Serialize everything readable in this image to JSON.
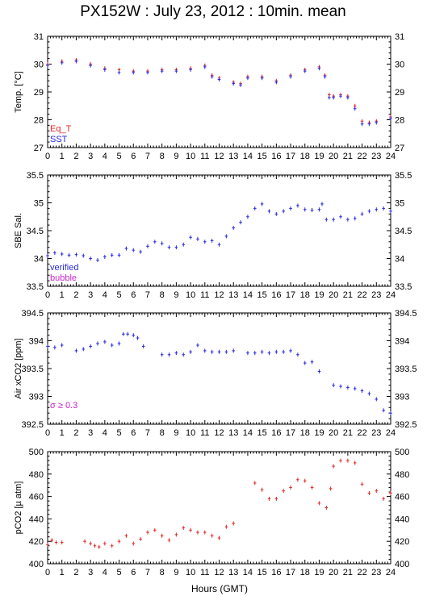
{
  "title": "PX152W : July 23, 2012 : 10min. mean",
  "xlabel": "Hours (GMT)",
  "colors": {
    "blue": "#2a2ae0",
    "red": "#e02a2a",
    "magenta": "#cc22cc",
    "frame": "#000000"
  },
  "chart_data": [
    {
      "type": "scatter",
      "ylabel": "Temp. [°C]",
      "xlim": [
        0,
        24
      ],
      "ylim": [
        27,
        31
      ],
      "xticks": [
        "0",
        "1",
        "2",
        "3",
        "4",
        "5",
        "6",
        "7",
        "8",
        "9",
        "10",
        "11",
        "12",
        "13",
        "14",
        "15",
        "16",
        "17",
        "18",
        "19",
        "20",
        "21",
        "22",
        "23",
        "24"
      ],
      "yticks": [
        "27",
        "28",
        "29",
        "30",
        "31"
      ],
      "legend": [
        {
          "label": "Eq_T",
          "color": "#e02a2a"
        },
        {
          "label": "SST",
          "color": "#2a2ae0"
        }
      ],
      "legend_position": "bottom-left",
      "series": [
        {
          "name": "Eq_T",
          "color": "#e02a2a",
          "x": [
            0,
            1,
            2,
            3,
            4,
            5,
            6,
            7,
            8,
            9,
            10,
            11,
            11.5,
            12,
            13,
            13.5,
            14,
            15,
            16,
            17,
            18,
            19,
            19.4,
            19.7,
            20,
            20.5,
            21,
            21.5,
            22,
            22.5,
            23,
            24
          ],
          "y": [
            30.0,
            30.1,
            30.15,
            30.0,
            29.85,
            29.8,
            29.75,
            29.75,
            29.8,
            29.8,
            29.85,
            29.95,
            29.6,
            29.5,
            29.35,
            29.3,
            29.55,
            29.55,
            29.4,
            29.6,
            29.8,
            29.9,
            29.6,
            28.9,
            28.85,
            28.9,
            28.85,
            28.5,
            27.95,
            27.9,
            27.95,
            28.1
          ]
        },
        {
          "name": "SST",
          "color": "#2a2ae0",
          "x": [
            0,
            1,
            2,
            3,
            4,
            5,
            6,
            7,
            8,
            9,
            10,
            11,
            11.5,
            12,
            13,
            13.5,
            14,
            15,
            16,
            17,
            18,
            19,
            19.4,
            19.7,
            20,
            20.5,
            21,
            21.5,
            22,
            22.5,
            23,
            24
          ],
          "y": [
            29.95,
            30.05,
            30.1,
            29.95,
            29.8,
            29.7,
            29.7,
            29.7,
            29.75,
            29.75,
            29.8,
            29.9,
            29.55,
            29.45,
            29.3,
            29.25,
            29.5,
            29.5,
            29.35,
            29.55,
            29.75,
            29.85,
            29.55,
            28.8,
            28.8,
            28.85,
            28.8,
            28.4,
            27.85,
            27.85,
            27.9,
            28.05
          ]
        }
      ]
    },
    {
      "type": "scatter",
      "ylabel": "SBE Sal.",
      "xlim": [
        0,
        24
      ],
      "ylim": [
        33.5,
        35.5
      ],
      "xticks": [
        "0",
        "1",
        "2",
        "3",
        "4",
        "5",
        "6",
        "7",
        "8",
        "9",
        "10",
        "11",
        "12",
        "13",
        "14",
        "15",
        "16",
        "17",
        "18",
        "19",
        "20",
        "21",
        "22",
        "23",
        "24"
      ],
      "yticks": [
        "33.5",
        "34",
        "34.5",
        "35",
        "35.5"
      ],
      "legend": [
        {
          "label": "verified",
          "color": "#2a2ae0"
        },
        {
          "label": "bubble",
          "color": "#cc22cc"
        }
      ],
      "legend_position": "bottom-left",
      "series": [
        {
          "name": "verified",
          "color": "#2a2ae0",
          "x": [
            0,
            0.5,
            1,
            1.5,
            2,
            2.5,
            3,
            3.5,
            4,
            4.5,
            5,
            5.5,
            6,
            6.5,
            7,
            7.5,
            8,
            8.5,
            9,
            9.5,
            10,
            10.5,
            11,
            11.5,
            12,
            12.5,
            13,
            13.5,
            14,
            14.5,
            15,
            15.5,
            16,
            16.5,
            17,
            17.5,
            18,
            18.5,
            19,
            19.2,
            19.5,
            20,
            20.5,
            21,
            21.5,
            22,
            22.5,
            23,
            23.5,
            24
          ],
          "y": [
            34.05,
            34.1,
            34.08,
            34.06,
            34.07,
            34.05,
            34.0,
            33.97,
            34.03,
            34.06,
            34.06,
            34.18,
            34.15,
            34.12,
            34.22,
            34.3,
            34.27,
            34.2,
            34.2,
            34.25,
            34.38,
            34.35,
            34.3,
            34.32,
            34.25,
            34.4,
            34.55,
            34.65,
            34.75,
            34.9,
            34.98,
            34.85,
            34.8,
            34.85,
            34.9,
            34.95,
            34.88,
            34.87,
            34.88,
            34.98,
            34.7,
            34.7,
            34.75,
            34.7,
            34.72,
            34.8,
            34.85,
            34.88,
            34.9,
            34.85
          ]
        }
      ]
    },
    {
      "type": "scatter",
      "ylabel": "Air xCO2 [ppm]",
      "xlim": [
        0,
        24
      ],
      "ylim": [
        392.5,
        394.5
      ],
      "xticks": [
        "0",
        "1",
        "2",
        "3",
        "4",
        "5",
        "6",
        "7",
        "8",
        "9",
        "10",
        "11",
        "12",
        "13",
        "14",
        "15",
        "16",
        "17",
        "18",
        "19",
        "20",
        "21",
        "22",
        "23",
        "24"
      ],
      "yticks": [
        "392.5",
        "393",
        "393.5",
        "394",
        "394.5"
      ],
      "annotation": "σ ≥ 0.3",
      "series": [
        {
          "name": "",
          "color": "#2a2ae0",
          "x": [
            0,
            0.5,
            1,
            2,
            2.5,
            3,
            3.5,
            4,
            4.5,
            5,
            5.3,
            5.6,
            6,
            6.3,
            6.7,
            8,
            8.5,
            9,
            9.5,
            10,
            10.5,
            11,
            11.5,
            12,
            12.5,
            13,
            14,
            14.5,
            15,
            15.5,
            16,
            16.5,
            17,
            17.5,
            18,
            18.5,
            19,
            20,
            20.5,
            21,
            21.5,
            22,
            22.5,
            23,
            23.5,
            24
          ],
          "y": [
            393.9,
            393.88,
            393.92,
            393.82,
            393.85,
            393.9,
            393.95,
            393.98,
            393.92,
            393.95,
            394.12,
            394.12,
            394.1,
            394.05,
            393.9,
            393.75,
            393.75,
            393.78,
            393.75,
            393.8,
            393.92,
            393.82,
            393.8,
            393.8,
            393.8,
            393.82,
            393.78,
            393.78,
            393.8,
            393.78,
            393.8,
            393.8,
            393.82,
            393.75,
            393.6,
            393.62,
            393.45,
            393.2,
            393.18,
            393.16,
            393.14,
            393.1,
            393.05,
            392.95,
            392.75,
            392.7
          ]
        }
      ]
    },
    {
      "type": "scatter",
      "ylabel": "pCO2 [µ atm]",
      "xlim": [
        0,
        24
      ],
      "ylim": [
        400,
        500
      ],
      "xticks": [
        "0",
        "1",
        "2",
        "3",
        "4",
        "5",
        "6",
        "7",
        "8",
        "9",
        "10",
        "11",
        "12",
        "13",
        "14",
        "15",
        "16",
        "17",
        "18",
        "19",
        "20",
        "21",
        "22",
        "23",
        "24"
      ],
      "yticks": [
        "400",
        "420",
        "440",
        "460",
        "480",
        "500"
      ],
      "series": [
        {
          "name": "",
          "color": "#e02a2a",
          "x": [
            0,
            0.3,
            0.6,
            1,
            2.6,
            3,
            3.3,
            3.6,
            4,
            4.5,
            5,
            5.5,
            6,
            6.5,
            7,
            7.5,
            8,
            8.5,
            9,
            9.5,
            10,
            10.5,
            11,
            11.5,
            12,
            12.5,
            13,
            14.5,
            15,
            15.5,
            16,
            16.5,
            17,
            17.5,
            18,
            18.5,
            19,
            19.5,
            19.8,
            20,
            20.5,
            21,
            21.5,
            22,
            22.5,
            23,
            23.5,
            24
          ],
          "y": [
            417,
            421,
            419,
            419,
            420,
            418,
            416,
            415,
            418,
            416,
            420,
            425,
            418,
            422,
            428,
            430,
            425,
            421,
            426,
            432,
            430,
            428,
            428,
            425,
            423,
            433,
            436,
            472,
            466,
            458,
            458,
            465,
            468,
            475,
            474,
            468,
            454,
            450,
            467,
            487,
            492,
            492,
            490,
            471,
            463,
            465,
            458,
            463
          ]
        }
      ]
    }
  ]
}
